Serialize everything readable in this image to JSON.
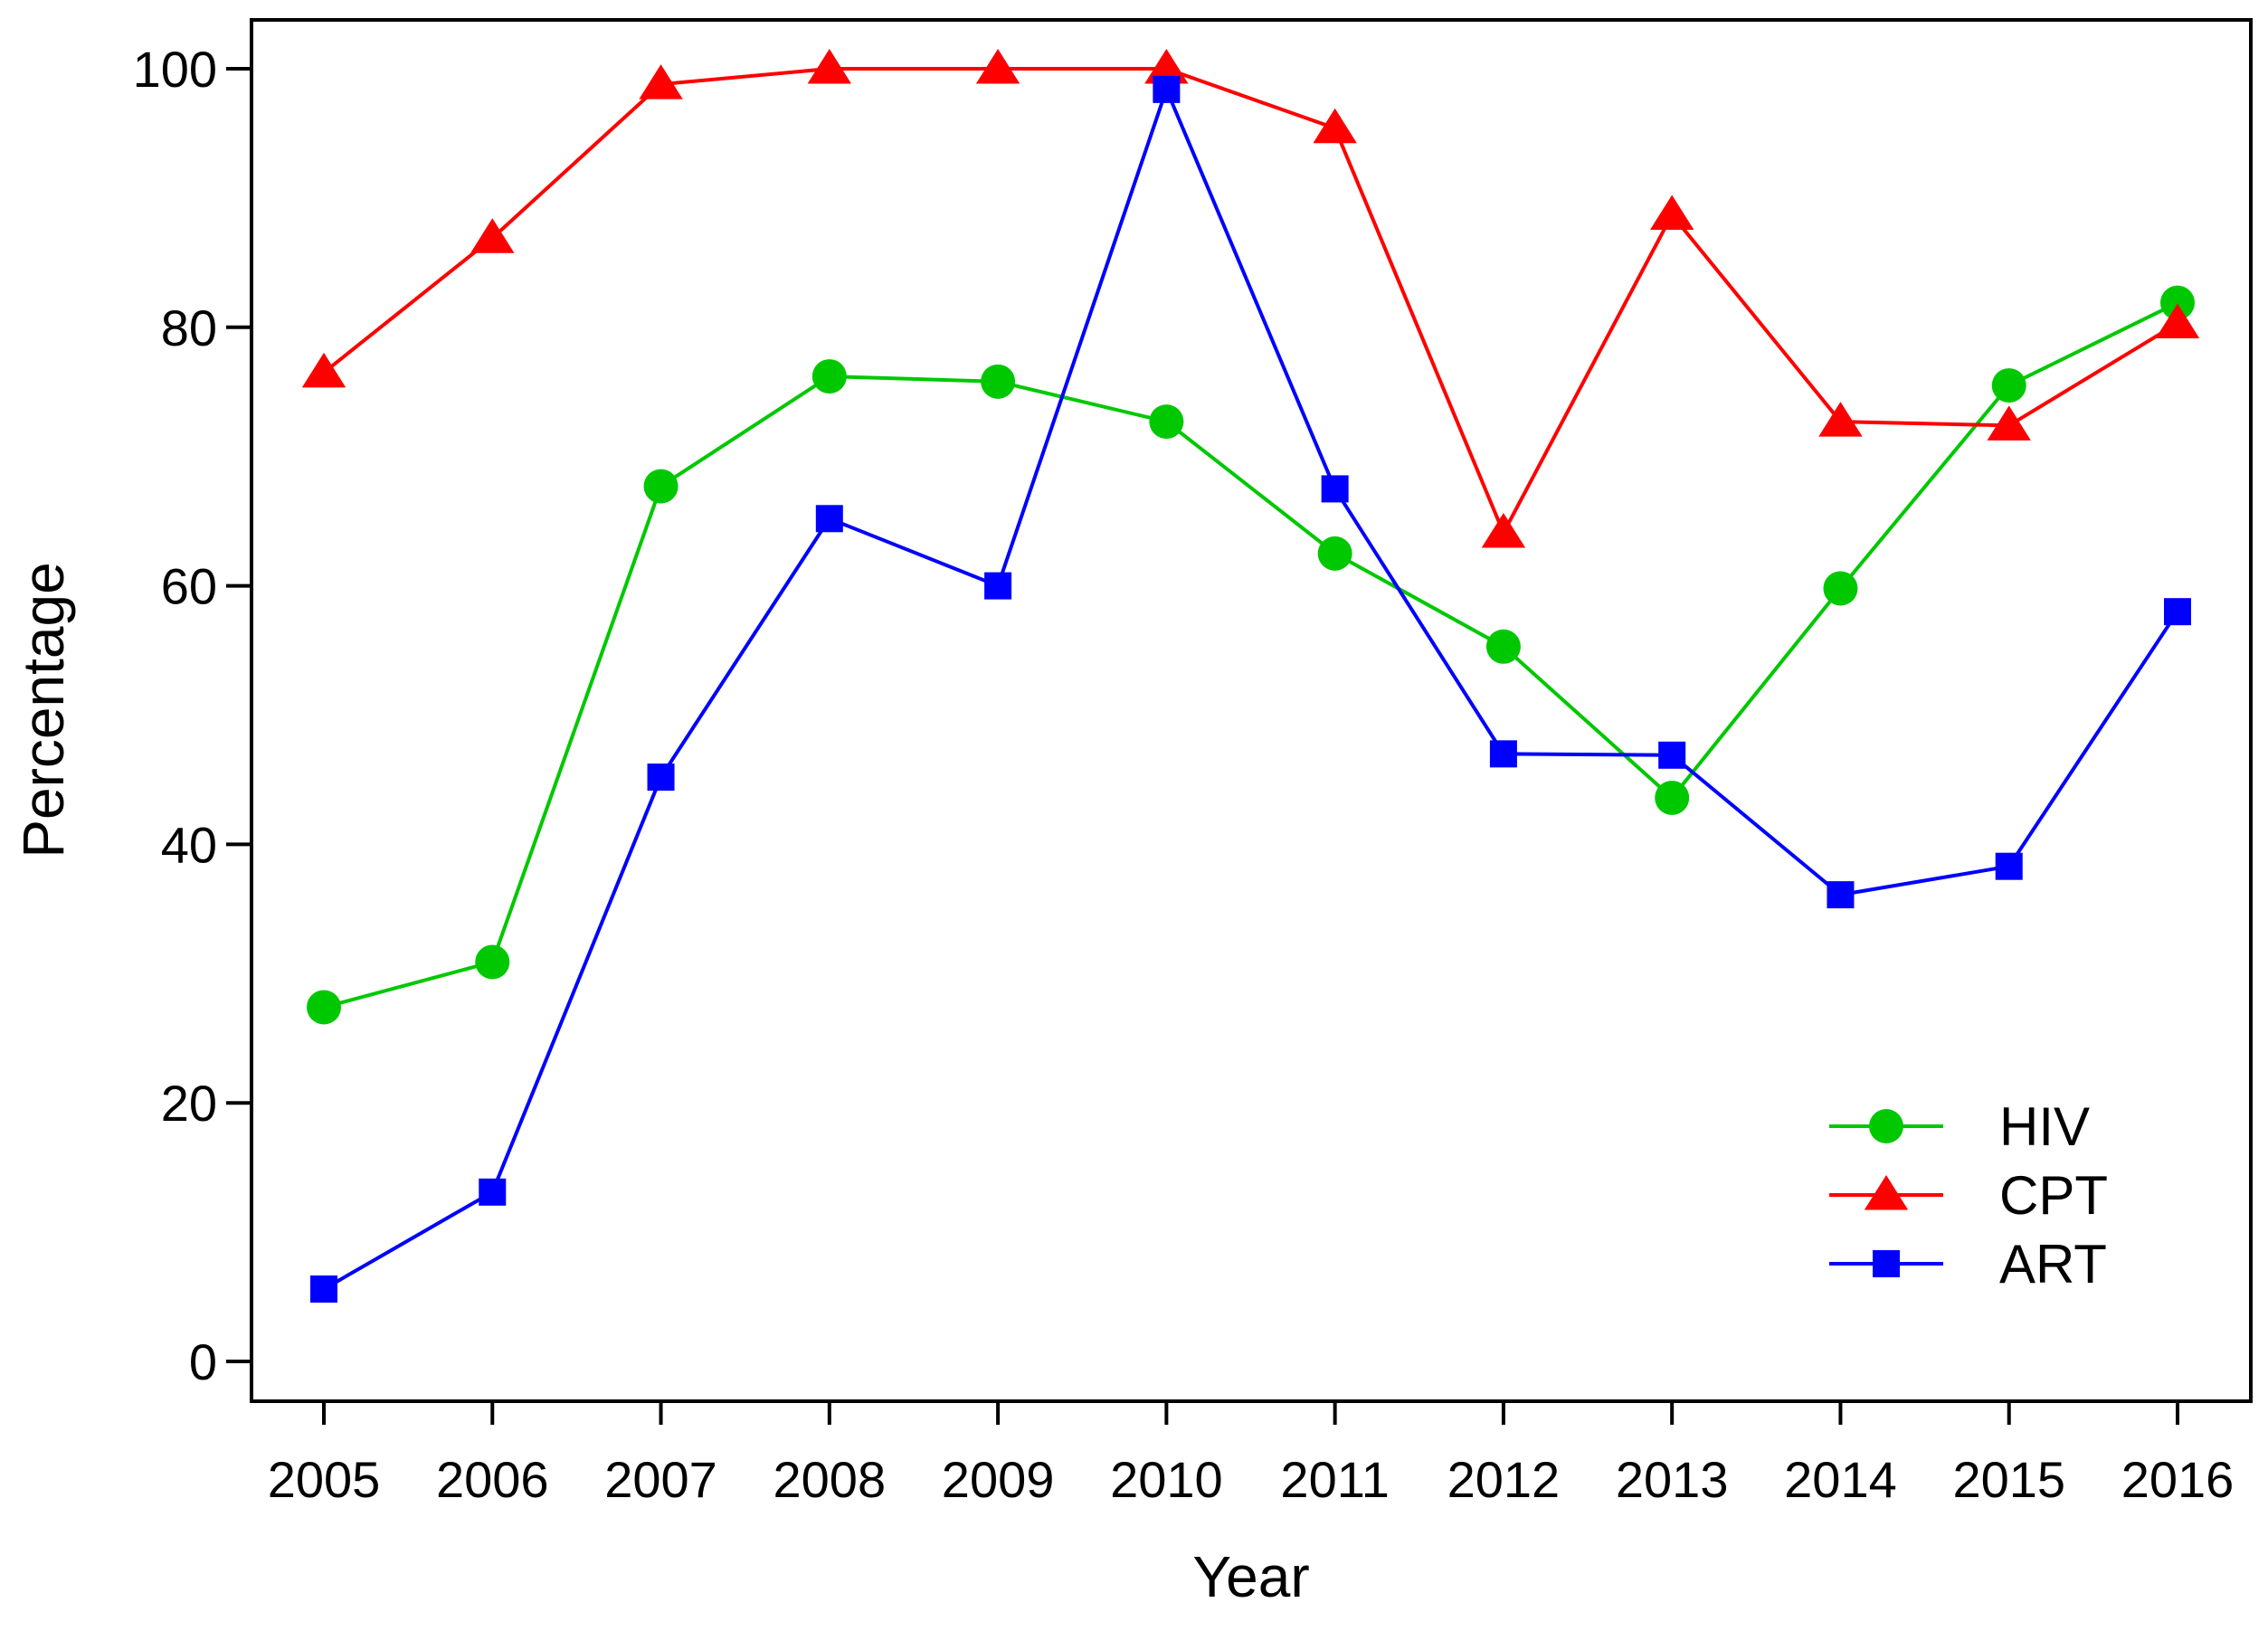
{
  "chart_data": {
    "type": "line",
    "title": "",
    "xlabel": "Year",
    "ylabel": "Percentage",
    "x": [
      "2005",
      "2006",
      "2007",
      "2008",
      "2009",
      "2010",
      "2011",
      "2012",
      "2013",
      "2014",
      "2015",
      "2016"
    ],
    "ylim": [
      0,
      100
    ],
    "yticks": [
      "0",
      "20",
      "40",
      "60",
      "80",
      "100"
    ],
    "grid": false,
    "legend_position": "bottom-right",
    "series": [
      {
        "name": "HIV",
        "color": "#00c800",
        "marker": "circle",
        "values": [
          27.4,
          30.9,
          67.7,
          76.2,
          75.8,
          72.7,
          62.5,
          55.3,
          43.6,
          59.8,
          75.5,
          81.9
        ]
      },
      {
        "name": "CPT",
        "color": "#ff0000",
        "marker": "triangle",
        "values": [
          76.5,
          86.9,
          98.8,
          100,
          100,
          100,
          95.4,
          64.1,
          88.7,
          72.7,
          72.4,
          80.3
        ]
      },
      {
        "name": "ART",
        "color": "#0000ff",
        "marker": "square",
        "values": [
          5.6,
          13.1,
          45.2,
          65.2,
          60.0,
          98.4,
          67.5,
          47.0,
          46.9,
          36.1,
          38.3,
          58.0
        ]
      }
    ]
  }
}
